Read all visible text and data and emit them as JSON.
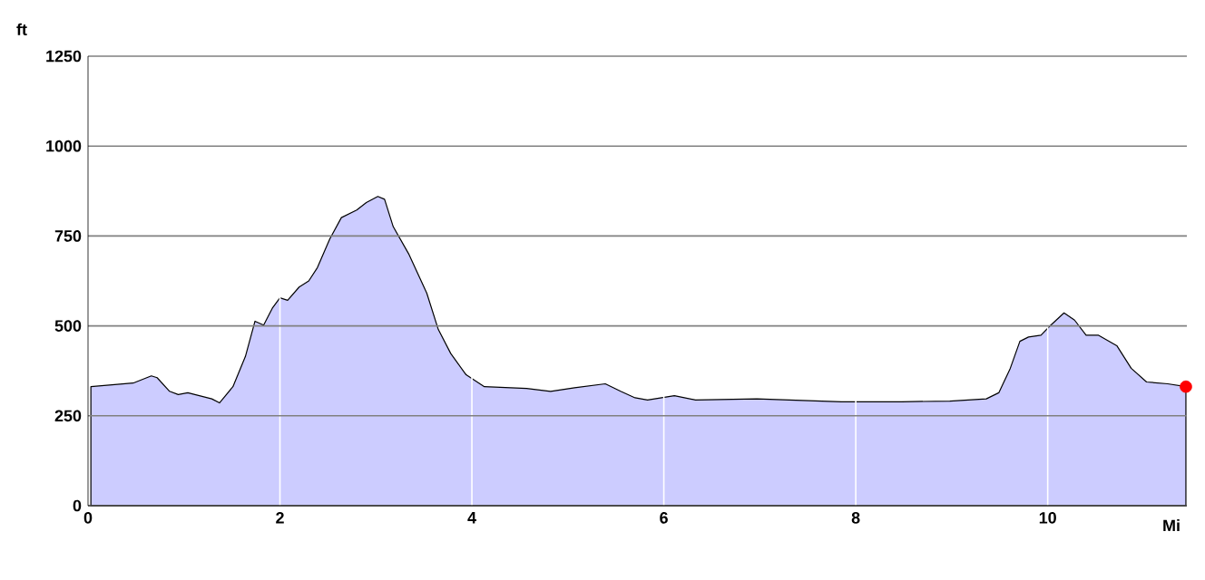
{
  "chart_data": {
    "type": "area",
    "xlabel": "Mi",
    "ylabel": "ft",
    "xlim": [
      0,
      11.45
    ],
    "ylim": [
      0,
      1250
    ],
    "xticks": [
      0,
      2,
      4,
      6,
      8,
      10
    ],
    "yticks": [
      0,
      250,
      500,
      750,
      1000,
      1250
    ],
    "grid": true,
    "series": [
      {
        "color": "#ccccff",
        "x": [
          0.03,
          0.47,
          0.66,
          0.72,
          0.85,
          0.94,
          1.04,
          1.29,
          1.37,
          1.51,
          1.64,
          1.74,
          1.83,
          1.92,
          2.0,
          2.08,
          2.2,
          2.3,
          2.39,
          2.52,
          2.64,
          2.8,
          2.9,
          3.02,
          3.09,
          3.18,
          3.34,
          3.53,
          3.65,
          3.78,
          3.94,
          4.13,
          4.57,
          4.82,
          5.07,
          5.39,
          5.55,
          5.7,
          5.83,
          6.11,
          6.33,
          6.97,
          7.85,
          8.48,
          8.98,
          9.36,
          9.49,
          9.61,
          9.71,
          9.8,
          9.93,
          10.02,
          10.17,
          10.28,
          10.4,
          10.53,
          10.72,
          10.87,
          11.03,
          11.25,
          11.44
        ],
        "values": [
          331,
          341,
          361,
          356,
          318,
          309,
          314,
          297,
          286,
          331,
          415,
          513,
          502,
          549,
          578,
          571,
          608,
          625,
          662,
          742,
          801,
          822,
          843,
          860,
          852,
          776,
          701,
          591,
          490,
          423,
          364,
          331,
          326,
          318,
          328,
          339,
          318,
          300,
          294,
          306,
          294,
          297,
          289,
          289,
          291,
          297,
          314,
          382,
          457,
          469,
          474,
          499,
          536,
          516,
          474,
          474,
          445,
          382,
          344,
          339,
          331
        ]
      },
      {
        "type": "scatter",
        "marker": "circle",
        "color": "#ff0000",
        "x": [
          11.44
        ],
        "values": [
          331
        ]
      }
    ]
  }
}
